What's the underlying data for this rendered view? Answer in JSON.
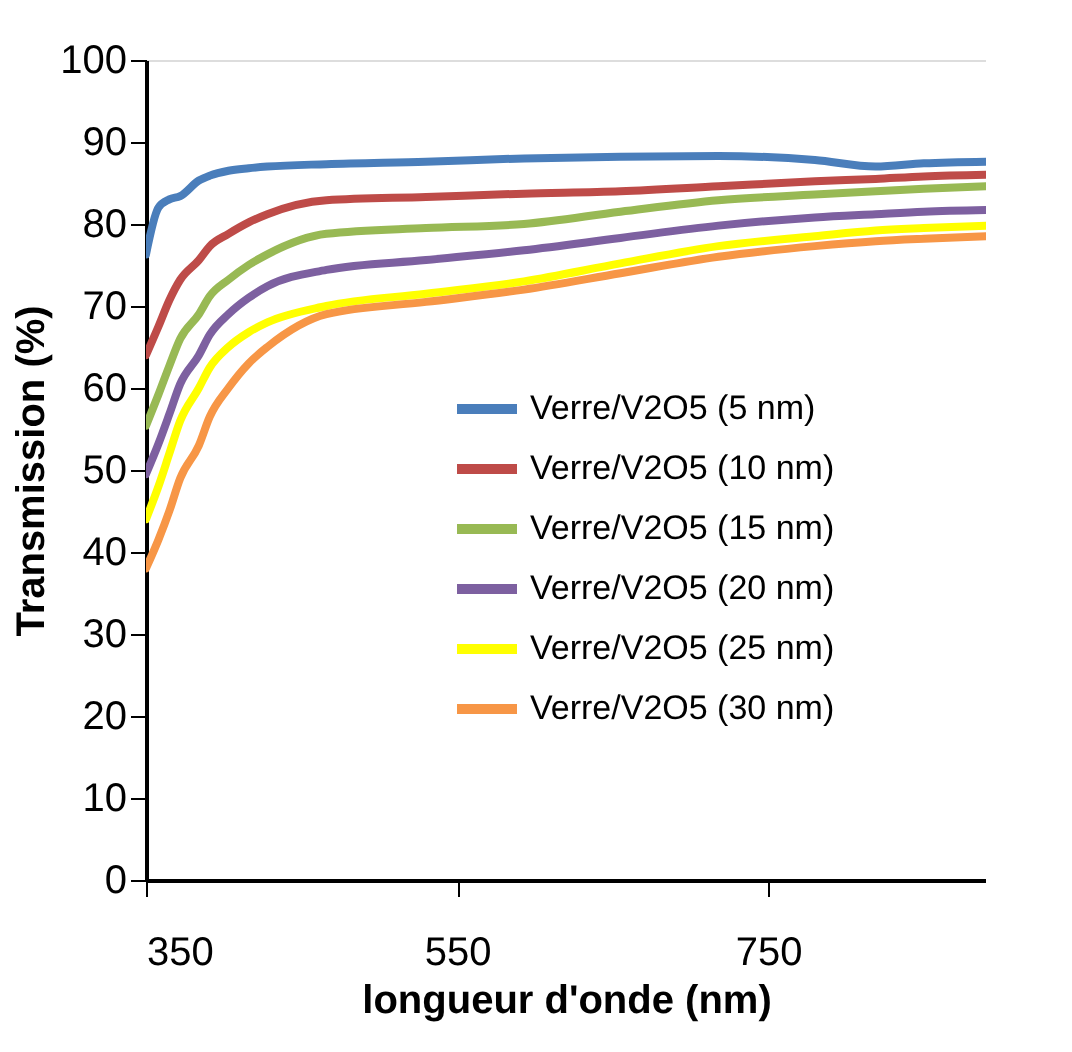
{
  "chart_data": {
    "type": "line",
    "xlabel": "longueur d'onde (nm)",
    "ylabel": "Transmission (%)",
    "xlim": [
      350,
      890
    ],
    "xticks": [
      350,
      550,
      750
    ],
    "ylim": [
      0,
      100
    ],
    "yticks": [
      0,
      10,
      20,
      30,
      40,
      50,
      60,
      70,
      80,
      90,
      100
    ],
    "grid": false,
    "legend": "bottom right",
    "marker": "none",
    "line_style": "solid",
    "x": [
      350,
      358,
      365,
      372,
      384,
      391,
      403,
      416,
      428,
      466,
      530,
      593,
      655,
      718,
      780,
      819,
      850,
      890
    ],
    "series": [
      {
        "name": "Verre/V2O5 (5 nm)",
        "color": "#4a7ebb",
        "values": [
          76.3,
          82,
          83,
          83.4,
          85.3,
          85.9,
          86.5,
          86.8,
          87,
          87.3,
          87.6,
          88,
          88.2,
          88.3,
          87.8,
          87,
          87.4,
          87.6
        ]
      },
      {
        "name": "Verre/V2O5 (10 nm)",
        "color": "#be4b48",
        "values": [
          64,
          67.5,
          70.7,
          73.2,
          75.6,
          77.3,
          78.8,
          80.2,
          81.2,
          82.9,
          83.3,
          83.7,
          84,
          84.6,
          85.2,
          85.5,
          85.8,
          86
        ]
      },
      {
        "name": "Verre/V2O5 (15 nm)",
        "color": "#98b954",
        "values": [
          55.4,
          59.2,
          62.7,
          66,
          69,
          71.2,
          73.2,
          75,
          76.3,
          78.8,
          79.5,
          80,
          81.5,
          82.9,
          83.6,
          84,
          84.3,
          84.6
        ]
      },
      {
        "name": "Verre/V2O5 (20 nm)",
        "color": "#7d60a0",
        "values": [
          49.5,
          53.2,
          56.8,
          60.5,
          64,
          66.5,
          69,
          71,
          72.4,
          74.4,
          75.6,
          76.8,
          78.3,
          79.8,
          80.8,
          81.2,
          81.5,
          81.7
        ]
      },
      {
        "name": "Verre/V2O5 (25 nm)",
        "color": "#ffff00",
        "values": [
          44,
          48,
          52,
          56,
          60,
          62.5,
          65,
          66.8,
          68,
          70,
          71.5,
          73,
          75.2,
          77.3,
          78.5,
          79.2,
          79.5,
          79.8
        ]
      },
      {
        "name": "Verre/V2O5 (30 nm)",
        "color": "#f79646",
        "values": [
          38,
          41.5,
          45,
          49,
          53,
          56.5,
          60,
          63,
          65,
          69,
          70.5,
          72,
          74,
          76,
          77.3,
          77.9,
          78.2,
          78.5
        ]
      }
    ]
  }
}
